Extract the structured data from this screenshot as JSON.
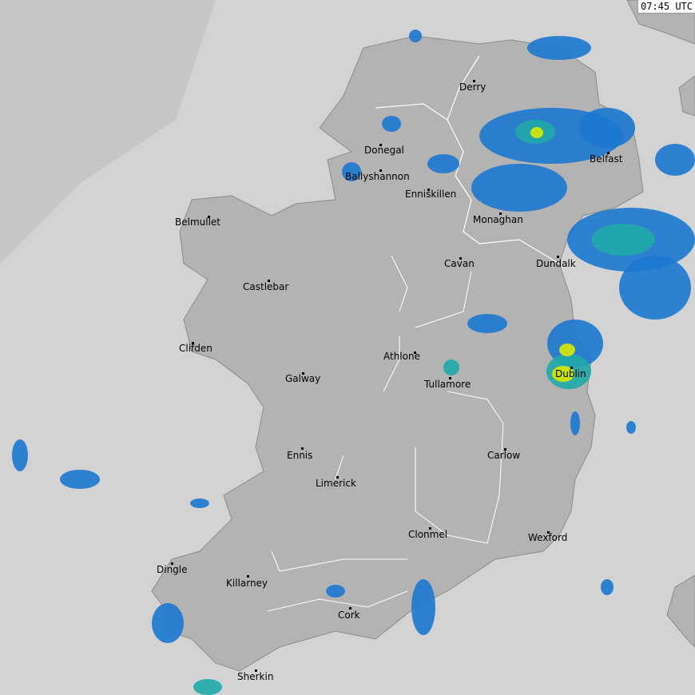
{
  "timestamp": "07:45 UTC",
  "colors": {
    "sea": "#d3d3d3",
    "offshore": "#c6c6c6",
    "land": "#b3b3b3",
    "rain_light": "#1c78d0",
    "rain_moderate": "#20a8a8",
    "rain_heavy": "#d8e800"
  },
  "cities": [
    {
      "name": "Derry"
    },
    {
      "name": "Donegal"
    },
    {
      "name": "Ballyshannon"
    },
    {
      "name": "Enniskillen"
    },
    {
      "name": "Belfast"
    },
    {
      "name": "Monaghan"
    },
    {
      "name": "Belmullet"
    },
    {
      "name": "Cavan"
    },
    {
      "name": "Dundalk"
    },
    {
      "name": "Castlebar"
    },
    {
      "name": "Clifden"
    },
    {
      "name": "Athlone"
    },
    {
      "name": "Galway"
    },
    {
      "name": "Tullamore"
    },
    {
      "name": "Dublin"
    },
    {
      "name": "Ennis"
    },
    {
      "name": "Carlow"
    },
    {
      "name": "Limerick"
    },
    {
      "name": "Clonmel"
    },
    {
      "name": "Wexford"
    },
    {
      "name": "Dingle"
    },
    {
      "name": "Killarney"
    },
    {
      "name": "Cork"
    },
    {
      "name": "Sherkin"
    }
  ]
}
